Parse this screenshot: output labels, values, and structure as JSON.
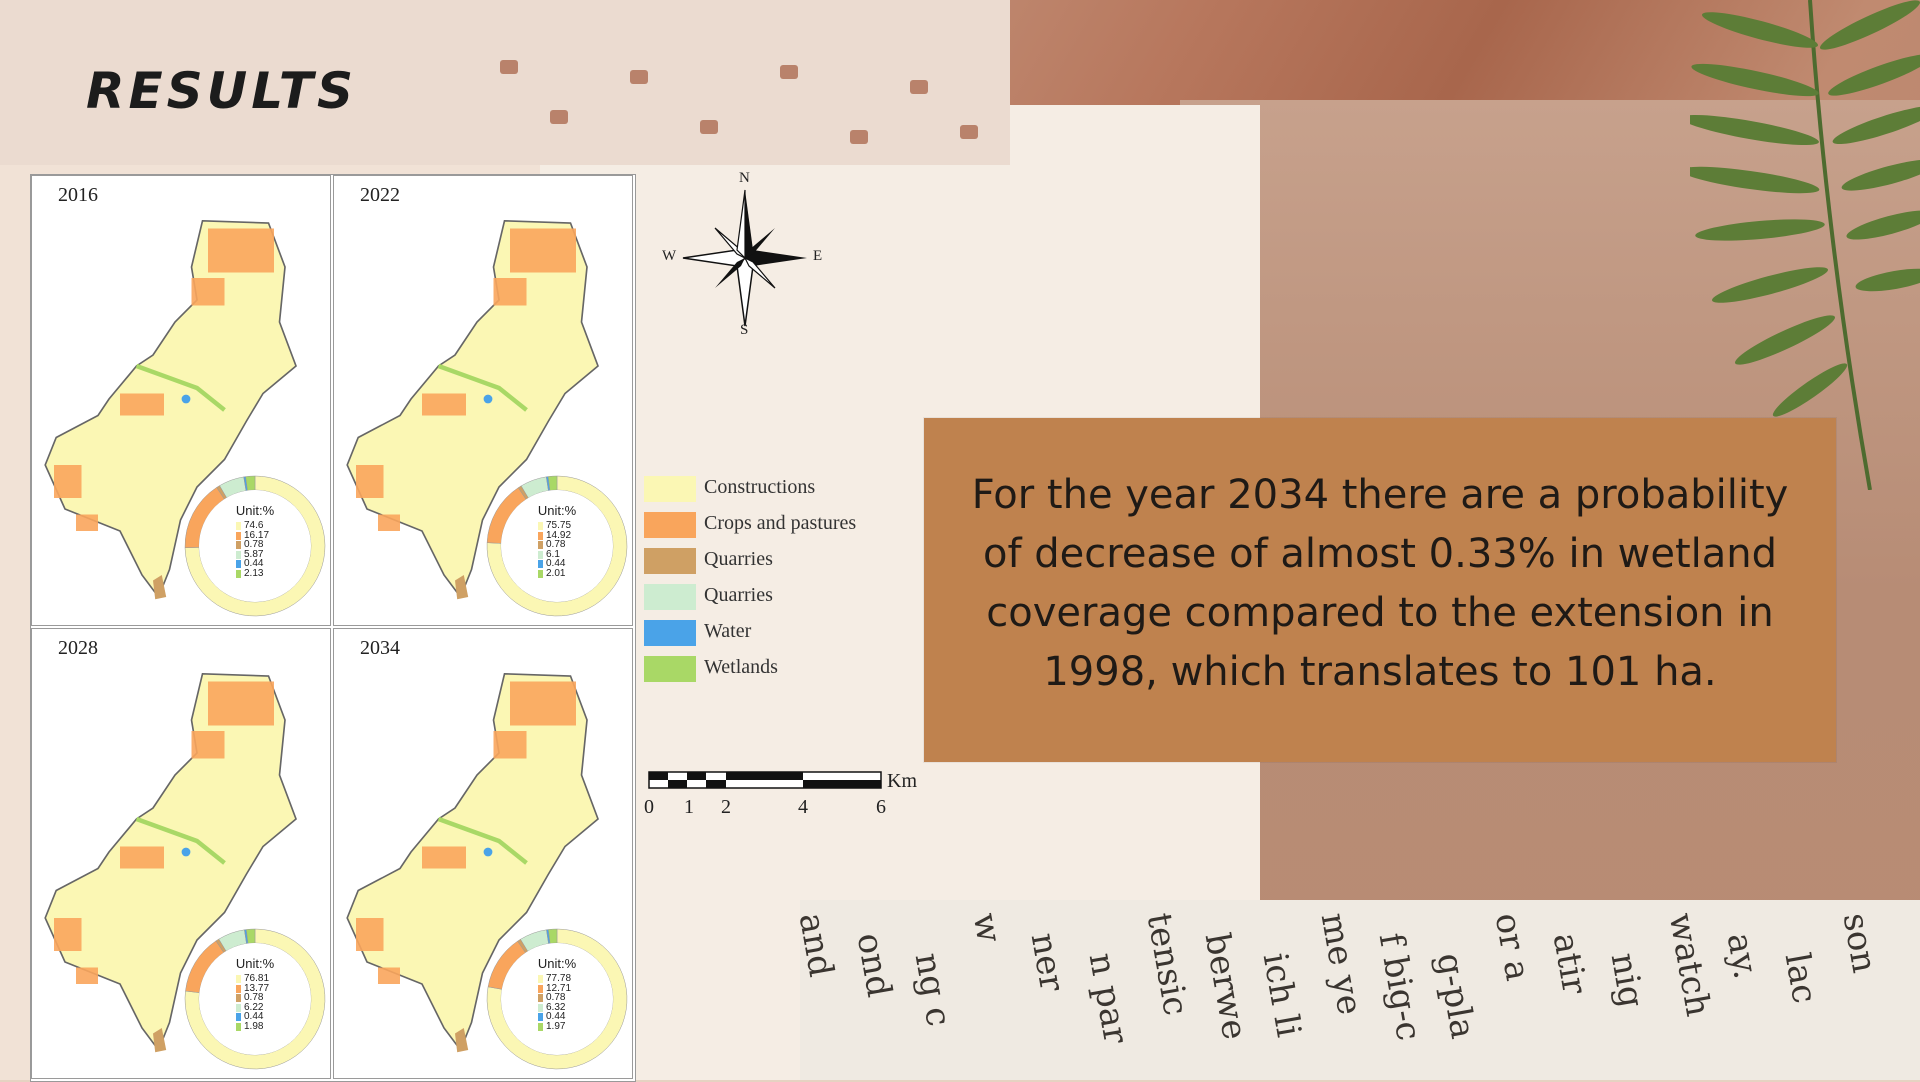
{
  "slide": {
    "title": "RESULTS",
    "body_text": "For the year 2034 there are a probability of decrease of almost 0.33% in wetland coverage compared to the extension in 1998, which translates to 101 ha."
  },
  "maps": [
    {
      "year": "2016",
      "unit_label": "Unit:%",
      "values": [
        "74.6",
        "16.17",
        "0.78",
        "5.87",
        "0.44",
        "2.13"
      ]
    },
    {
      "year": "2022",
      "unit_label": "Unit:%",
      "values": [
        "75.75",
        "14.92",
        "0.78",
        "6.1",
        "0.44",
        "2.01"
      ]
    },
    {
      "year": "2028",
      "unit_label": "Unit:%",
      "values": [
        "76.81",
        "13.77",
        "0.78",
        "6.22",
        "0.44",
        "1.98"
      ]
    },
    {
      "year": "2034",
      "unit_label": "Unit:%",
      "values": [
        "77.78",
        "12.71",
        "0.78",
        "6.32",
        "0.44",
        "1.97"
      ]
    }
  ],
  "legend": [
    {
      "label": "Constructions",
      "color": "#fbf7b4"
    },
    {
      "label": "Crops and pastures",
      "color": "#f9a55c"
    },
    {
      "label": "Quarries",
      "color": "#cfa064"
    },
    {
      "label": "Quarries",
      "color": "#cdecd0"
    },
    {
      "label": "Water",
      "color": "#4aa3e8"
    },
    {
      "label": "Wetlands",
      "color": "#a9d866"
    }
  ],
  "compass": {
    "n": "N",
    "s": "S",
    "e": "E",
    "w": "W"
  },
  "scale_bar": {
    "unit": "Km",
    "ticks": [
      "0",
      "1",
      "2",
      "4",
      "6"
    ]
  },
  "newspaper_words": [
    "and",
    "ond",
    "ng c",
    "w",
    "ner",
    "n par",
    "tensic",
    "berwe",
    "ich li",
    "me ye",
    "f big-c",
    "g-pla",
    "or a",
    "atir",
    "nig",
    "watch",
    "ay.",
    "lac",
    "son"
  ],
  "colors": {
    "textbox_bg": "#bf824e",
    "constructions": "#fbf7b4",
    "crops": "#f9a55c",
    "quarries_brown": "#cfa064",
    "quarries_green": "#cdecd0",
    "water": "#4aa3e8",
    "wetlands": "#a9d866"
  }
}
